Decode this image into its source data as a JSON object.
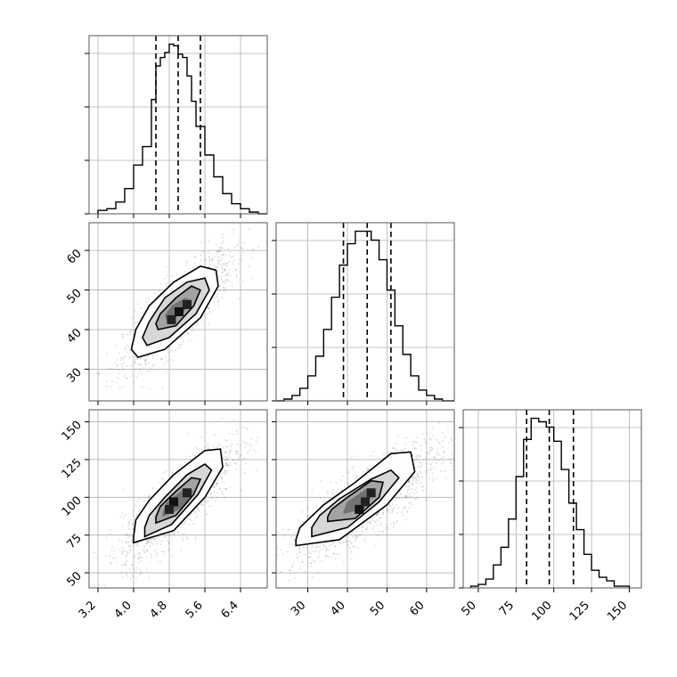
{
  "colors": {
    "line": "#000000",
    "grid": "#b0b0b0",
    "frame": "#555555",
    "point": "#000000"
  },
  "chart_data": {
    "type": "corner",
    "parameters": [
      {
        "index": 0,
        "range": [
          3.0,
          7.0
        ],
        "ticks": [
          3.2,
          4.0,
          4.8,
          5.6,
          6.4
        ],
        "tick_labels": [
          "3.2",
          "4.0",
          "4.8",
          "5.6",
          "6.4"
        ],
        "quantiles": [
          4.5,
          5.0,
          5.5
        ]
      },
      {
        "index": 1,
        "range": [
          22,
          67
        ],
        "ticks": [
          30,
          40,
          50,
          60
        ],
        "tick_labels": [
          "30",
          "40",
          "50",
          "60"
        ],
        "quantiles": [
          39,
          45,
          51
        ]
      },
      {
        "index": 2,
        "range": [
          40,
          158
        ],
        "ticks": [
          50,
          75,
          100,
          125,
          150
        ],
        "tick_labels": [
          "50",
          "75",
          "100",
          "125",
          "150"
        ],
        "quantiles": [
          82,
          97,
          113
        ]
      }
    ],
    "histograms": [
      {
        "param": 0,
        "bin_edges": [
          3.2,
          3.4,
          3.6,
          3.8,
          4.0,
          4.2,
          4.4,
          4.5,
          4.6,
          4.7,
          4.8,
          4.9,
          5.0,
          5.1,
          5.2,
          5.3,
          5.4,
          5.6,
          5.8,
          6.0,
          6.2,
          6.4,
          6.6,
          6.8,
          7.0
        ],
        "counts": [
          2,
          3,
          7,
          15,
          29,
          40,
          68,
          88,
          93,
          96,
          101,
          100,
          95,
          93,
          82,
          67,
          52,
          35,
          22,
          12,
          6,
          3,
          1,
          0
        ]
      },
      {
        "param": 1,
        "bin_edges": [
          22,
          24,
          26,
          28,
          30,
          32,
          34,
          36,
          38,
          40,
          42,
          44,
          46,
          48,
          50,
          52,
          54,
          56,
          58,
          60,
          62,
          64,
          67
        ],
        "counts": [
          0,
          1,
          3,
          7,
          14,
          25,
          40,
          58,
          76,
          88,
          95,
          95,
          90,
          79,
          62,
          42,
          26,
          14,
          6,
          3,
          1,
          0
        ]
      },
      {
        "param": 2,
        "bin_edges": [
          45,
          50,
          55,
          60,
          65,
          70,
          75,
          80,
          85,
          90,
          95,
          100,
          105,
          110,
          115,
          120,
          125,
          130,
          135,
          140,
          145,
          150
        ],
        "counts": [
          1,
          2,
          5,
          13,
          23,
          39,
          63,
          84,
          96,
          94,
          91,
          83,
          67,
          48,
          33,
          19,
          10,
          6,
          4,
          1,
          1
        ]
      }
    ],
    "panels_2d": [
      {
        "x_param": 0,
        "y_param": 1,
        "center": [
          5.0,
          45
        ],
        "contours": [
          [
            [
              4.1,
              33
            ],
            [
              4.7,
              35
            ],
            [
              5.5,
              43
            ],
            [
              5.9,
              51
            ],
            [
              5.85,
              55
            ],
            [
              5.5,
              56
            ],
            [
              4.9,
              52
            ],
            [
              4.35,
              46
            ],
            [
              4.05,
              40
            ],
            [
              3.95,
              35
            ]
          ],
          [
            [
              4.3,
              36
            ],
            [
              4.8,
              38
            ],
            [
              5.4,
              44
            ],
            [
              5.7,
              50
            ],
            [
              5.6,
              53
            ],
            [
              5.2,
              52
            ],
            [
              4.7,
              48
            ],
            [
              4.35,
              42
            ],
            [
              4.2,
              38
            ]
          ],
          [
            [
              4.55,
              40
            ],
            [
              4.95,
              41
            ],
            [
              5.35,
              46
            ],
            [
              5.5,
              50
            ],
            [
              5.3,
              51
            ],
            [
              4.95,
              48
            ],
            [
              4.6,
              44
            ],
            [
              4.5,
              41.5
            ]
          ],
          [
            [
              4.75,
              42
            ],
            [
              5.1,
              44
            ],
            [
              5.3,
              47.5
            ],
            [
              5.15,
              48
            ],
            [
              4.85,
              46
            ],
            [
              4.7,
              43.5
            ]
          ]
        ],
        "dense_cells": [
          [
            5.02,
            44.5
          ],
          [
            5.2,
            46.3
          ],
          [
            4.85,
            42.5
          ]
        ]
      },
      {
        "x_param": 0,
        "y_param": 2,
        "center": [
          5.0,
          97
        ],
        "contours": [
          [
            [
              4.0,
              70
            ],
            [
              4.9,
              78
            ],
            [
              5.6,
              100
            ],
            [
              6.0,
              120
            ],
            [
              5.95,
              132
            ],
            [
              5.6,
              131
            ],
            [
              4.9,
              115
            ],
            [
              4.35,
              98
            ],
            [
              4.05,
              85
            ],
            [
              4.0,
              74
            ]
          ],
          [
            [
              4.25,
              74
            ],
            [
              4.85,
              82
            ],
            [
              5.45,
              102
            ],
            [
              5.75,
              118
            ],
            [
              5.6,
              122
            ],
            [
              5.2,
              115
            ],
            [
              4.7,
              100
            ],
            [
              4.35,
              88
            ],
            [
              4.25,
              80
            ]
          ],
          [
            [
              4.5,
              83
            ],
            [
              4.95,
              88
            ],
            [
              5.35,
              102
            ],
            [
              5.5,
              112
            ],
            [
              5.3,
              113
            ],
            [
              4.95,
              104
            ],
            [
              4.6,
              94
            ],
            [
              4.5,
              87
            ]
          ],
          [
            [
              4.65,
              87
            ],
            [
              5.1,
              93
            ],
            [
              5.35,
              104
            ],
            [
              5.15,
              106
            ],
            [
              4.75,
              97
            ],
            [
              4.65,
              90
            ]
          ]
        ],
        "dense_cells": [
          [
            4.9,
            97
          ],
          [
            5.2,
            103
          ],
          [
            4.8,
            92
          ]
        ]
      },
      {
        "x_param": 1,
        "y_param": 2,
        "center": [
          45,
          97
        ],
        "contours": [
          [
            [
              27,
              68
            ],
            [
              38,
              72
            ],
            [
              50,
              95
            ],
            [
              57,
              117
            ],
            [
              56,
              130
            ],
            [
              51,
              129
            ],
            [
              42,
              110
            ],
            [
              34,
              95
            ],
            [
              28,
              80
            ],
            [
              27,
              72
            ]
          ],
          [
            [
              31,
              74
            ],
            [
              40,
              80
            ],
            [
              48,
              97
            ],
            [
              53,
              113
            ],
            [
              51,
              118
            ],
            [
              46,
              112
            ],
            [
              38,
              99
            ],
            [
              33,
              88
            ],
            [
              31,
              80
            ]
          ],
          [
            [
              35,
              84
            ],
            [
              42,
              86
            ],
            [
              48,
              100
            ],
            [
              49,
              110
            ],
            [
              46,
              111
            ],
            [
              40,
              100
            ],
            [
              36,
              92
            ],
            [
              35,
              87
            ]
          ],
          [
            [
              39,
              89
            ],
            [
              44,
              92
            ],
            [
              47,
              104
            ],
            [
              45,
              106
            ],
            [
              40,
              97
            ],
            [
              39,
              91
            ]
          ]
        ],
        "dense_cells": [
          [
            43,
            92
          ],
          [
            44.5,
            97
          ],
          [
            46,
            103
          ]
        ]
      }
    ]
  }
}
